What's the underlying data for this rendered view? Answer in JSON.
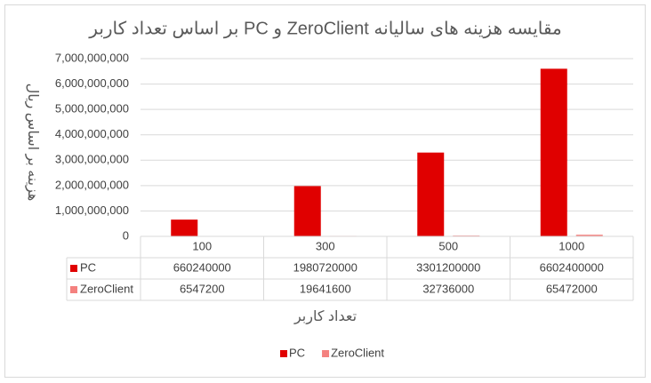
{
  "chart_data": {
    "type": "bar",
    "title": "مقایسه هزینه های سالیانه  ZeroClient و PC بر اساس تعداد کاربر",
    "y_label": "هزینه بر اساس ریال",
    "x_label": "تعداد کاربر",
    "categories": [
      "100",
      "300",
      "500",
      "1000"
    ],
    "series": [
      {
        "name": "PC",
        "color": "#e00000",
        "values": [
          660240000,
          1980720000,
          3301200000,
          6602400000
        ]
      },
      {
        "name": "ZeroClient",
        "color": "#f4817f",
        "values": [
          6547200,
          19641600,
          32736000,
          65472000
        ]
      }
    ],
    "ylim": [
      0,
      7000000000
    ],
    "yticks": [
      0,
      {
        "value": 1000000000,
        "label": "1,000,000,000"
      },
      {
        "value": 2000000000,
        "label": "2,000,000,000"
      },
      {
        "value": 3000000000,
        "label": "3,000,000,000"
      },
      {
        "value": 4000000000,
        "label": "4,000,000,000"
      },
      {
        "value": 5000000000,
        "label": "5,000,000,000"
      },
      {
        "value": 6000000000,
        "label": "6,000,000,000"
      },
      {
        "value": 7000000000,
        "label": "7,000,000,000"
      }
    ],
    "grid": true,
    "data_table": true,
    "legend": "bottom"
  }
}
